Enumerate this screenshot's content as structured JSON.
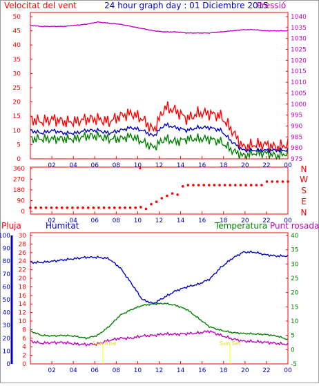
{
  "header": {
    "left_title": "Velocitat del vent",
    "center_title": "24 hour graph day : 01 Diciembre 2015",
    "right_title": "Pressió"
  },
  "colors": {
    "wind_gust": "#ff0000",
    "wind_avg": "#0000c0",
    "wind_min": "#008000",
    "pressure": "#c000c0",
    "axis_red": "#ff0000",
    "axis_blue": "#0000c0",
    "axis_green": "#008000",
    "axis_magenta": "#c000c0",
    "frame": "#ff0000",
    "sun_marker": "#ffff00"
  },
  "chart_data": [
    {
      "type": "line",
      "title": "Velocitat del vent / Pressió",
      "x_ticks": [
        "02",
        "04",
        "06",
        "08",
        "10",
        "12",
        "14",
        "16",
        "18",
        "20",
        "22",
        "00"
      ],
      "y_left_ticks": [
        "0",
        "5",
        "10",
        "15",
        "20",
        "25",
        "30",
        "35",
        "40",
        "45",
        "50"
      ],
      "y_left_range": [
        0,
        50
      ],
      "y_right_ticks": [
        "975",
        "980",
        "985",
        "990",
        "995",
        "1000",
        "1005",
        "1010",
        "1015",
        "1020",
        "1025",
        "1030",
        "1035",
        "1040"
      ],
      "y_right_range": [
        975,
        1040
      ],
      "series": [
        {
          "name": "Velocitat del vent",
          "values": [
            14,
            13,
            14,
            13,
            13,
            14,
            14,
            13,
            15,
            16,
            14,
            10,
            18,
            17,
            14,
            16,
            16,
            15,
            10,
            4,
            5,
            5,
            4,
            5
          ]
        },
        {
          "name": "",
          "values": [
            10,
            9,
            10,
            9,
            9,
            10,
            10,
            9,
            10,
            11,
            10,
            8,
            12,
            11,
            10,
            11,
            11,
            10,
            6,
            3,
            3,
            3,
            3,
            3
          ]
        },
        {
          "name": "",
          "values": [
            7,
            7,
            7,
            7,
            7,
            8,
            8,
            7,
            7,
            8,
            6,
            4,
            7,
            6,
            7,
            7,
            7,
            6,
            3,
            1,
            2,
            2,
            1,
            2
          ]
        },
        {
          "name": "Pressió",
          "values": [
            1036,
            1035.5,
            1035.5,
            1035.5,
            1036,
            1036.5,
            1037.5,
            1037,
            1036.5,
            1035.5,
            1034.5,
            1033.5,
            1033,
            1033,
            1032.5,
            1032.5,
            1032.5,
            1033,
            1033.5,
            1034,
            1034,
            1033.5,
            1033.5,
            1033.5
          ]
        }
      ]
    },
    {
      "type": "scatter",
      "title": "",
      "x_ticks": [
        "02",
        "04",
        "06",
        "08",
        "10",
        "12",
        "14",
        "16",
        "18",
        "20",
        "22",
        "00"
      ],
      "y_left_ticks": [
        "0",
        "90",
        "180",
        "270",
        "360"
      ],
      "y_left_range": [
        0,
        360
      ],
      "y_right_ticks": [
        "N",
        "W",
        "S",
        "E",
        "N"
      ],
      "series": [
        {
          "name": "",
          "values": [
            30,
            30,
            30,
            30,
            30,
            30,
            30,
            30,
            30,
            30,
            30,
            30,
            30,
            30,
            30,
            30,
            30,
            30,
            30,
            30,
            30,
            35,
            20,
            60,
            80,
            110,
            130,
            150,
            140,
            210,
            220,
            220,
            220,
            220,
            220,
            220,
            220,
            220,
            220,
            220,
            220,
            220,
            220,
            220,
            220,
            250,
            250,
            250,
            250,
            250
          ]
        }
      ]
    },
    {
      "type": "line",
      "title": "Humitat / Temperatura / Punt rosada",
      "x_ticks": [
        "02",
        "04",
        "06",
        "08",
        "10",
        "12",
        "14",
        "16",
        "18",
        "20",
        "22",
        "00"
      ],
      "y_pluja_ticks": [
        "0",
        "2",
        "4",
        "6",
        "8",
        "10",
        "12",
        "14",
        "16",
        "18",
        "20",
        "22",
        "24",
        "26",
        "28",
        "30"
      ],
      "y_humitat_ticks": [
        "0",
        "10",
        "20",
        "30",
        "40",
        "50",
        "60",
        "70",
        "80",
        "90",
        "100"
      ],
      "y_right_ticks": [
        "-5",
        "0",
        "5",
        "10",
        "15",
        "20",
        "25",
        "30",
        "35",
        "40"
      ],
      "y_right_range": [
        -5,
        40
      ],
      "series": [
        {
          "name": "Humitat",
          "values": [
            79,
            79,
            80,
            81,
            82,
            83,
            83,
            82,
            75,
            63,
            50,
            47,
            52,
            57,
            60,
            62,
            66,
            75,
            82,
            87,
            87,
            85,
            84,
            84
          ]
        },
        {
          "name": "Temperatura",
          "values": [
            6.5,
            5,
            4.8,
            5,
            4.7,
            4,
            5,
            8,
            12,
            14,
            15.5,
            16,
            16.2,
            15.5,
            14,
            11,
            8,
            6.8,
            6,
            5.7,
            5.5,
            5.3,
            4.8,
            3.5
          ]
        },
        {
          "name": "Punt rosada",
          "values": [
            3,
            2.2,
            2.5,
            2.5,
            2,
            1.8,
            2,
            3.2,
            4,
            4,
            4.8,
            5,
            5.5,
            5.4,
            5.6,
            5.8,
            6.5,
            5,
            3.8,
            3,
            2.8,
            2.6,
            2.2,
            1.8
          ]
        }
      ],
      "annotations": [
        "Sun Rise",
        "Sun Set"
      ]
    }
  ],
  "labels": {
    "wind_dir_right": [
      "N",
      "W",
      "S",
      "E",
      "N"
    ],
    "pluja": "Pluja",
    "humitat": "Humitat",
    "temperatura": "Temperatura",
    "punt_rosada": "Punt rosada",
    "sun_rise": "Sun Rise",
    "sun_set": "Sun Set"
  }
}
